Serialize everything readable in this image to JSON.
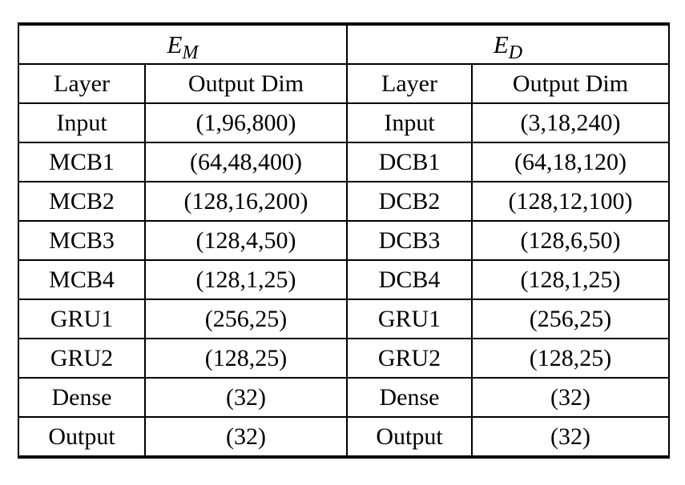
{
  "table": {
    "sections": [
      {
        "base": "E",
        "sub": "M"
      },
      {
        "base": "E",
        "sub": "D"
      }
    ],
    "column_headers": [
      "Layer",
      "Output Dim",
      "Layer",
      "Output Dim"
    ],
    "rows": [
      [
        "Input",
        "(1,96,800)",
        "Input",
        "(3,18,240)"
      ],
      [
        "MCB1",
        "(64,48,400)",
        "DCB1",
        "(64,18,120)"
      ],
      [
        "MCB2",
        "(128,16,200)",
        "DCB2",
        "(128,12,100)"
      ],
      [
        "MCB3",
        "(128,4,50)",
        "DCB3",
        "(128,6,50)"
      ],
      [
        "MCB4",
        "(128,1,25)",
        "DCB4",
        "(128,1,25)"
      ],
      [
        "GRU1",
        "(256,25)",
        "GRU1",
        "(256,25)"
      ],
      [
        "GRU2",
        "(128,25)",
        "GRU2",
        "(128,25)"
      ],
      [
        "Dense",
        "(32)",
        "Dense",
        "(32)"
      ],
      [
        "Output",
        "(32)",
        "Output",
        "(32)"
      ]
    ],
    "colors": {
      "border": "#000000",
      "text": "#000000",
      "background": "#ffffff"
    }
  }
}
